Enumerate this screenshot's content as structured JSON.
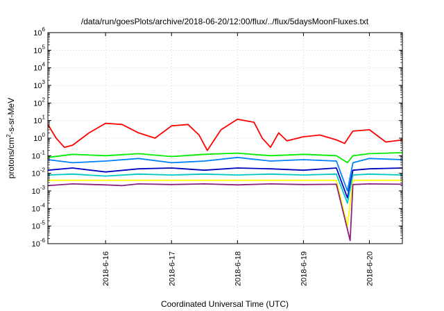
{
  "chart_data": {
    "type": "line",
    "title": "/data/run/goesPlots/archive/2018-06-20/12:00/flux/../flux/5daysMoonFluxes.txt",
    "xlabel": "Coordinated Universal Time (UTC)",
    "ylabel": {
      "base": "protons/cm",
      "sup": "2",
      "rest": "-s-sr-MeV"
    },
    "y_scale": "log",
    "ylim": [
      1e-06,
      1000000.0
    ],
    "y_ticks": [
      {
        "base": "10",
        "exp": "-6"
      },
      {
        "base": "10",
        "exp": "-5"
      },
      {
        "base": "10",
        "exp": "-4"
      },
      {
        "base": "10",
        "exp": "-3"
      },
      {
        "base": "10",
        "exp": "-2"
      },
      {
        "base": "10",
        "exp": "-1"
      },
      {
        "base": "10",
        "exp": "0"
      },
      {
        "base": "10",
        "exp": "1"
      },
      {
        "base": "10",
        "exp": "2"
      },
      {
        "base": "10",
        "exp": "3"
      },
      {
        "base": "10",
        "exp": "4"
      },
      {
        "base": "10",
        "exp": "5"
      },
      {
        "base": "10",
        "exp": "6"
      }
    ],
    "xlim": [
      "2018-06-15 03:00",
      "2018-06-20 12:00"
    ],
    "x_ticks": [
      "2018-6-16",
      "2018-6-17",
      "2018-6-18",
      "2018-6-19",
      "2018-6-20"
    ],
    "x_tick_dates": [
      "2018-06-16",
      "2018-06-17",
      "2018-06-18",
      "2018-06-19",
      "2018-06-20"
    ],
    "grid": true,
    "series": [
      {
        "color": "#ff0000",
        "x": [
          "2018-06-15 03:00",
          "2018-06-15 06:00",
          "2018-06-15 09:00",
          "2018-06-15 12:00",
          "2018-06-15 18:00",
          "2018-06-16 00:00",
          "2018-06-16 06:00",
          "2018-06-16 12:00",
          "2018-06-16 18:00",
          "2018-06-17 00:00",
          "2018-06-17 06:00",
          "2018-06-17 10:00",
          "2018-06-17 13:00",
          "2018-06-17 18:00",
          "2018-06-18 00:00",
          "2018-06-18 06:00",
          "2018-06-18 09:00",
          "2018-06-18 12:00",
          "2018-06-18 15:00",
          "2018-06-18 18:00",
          "2018-06-19 00:00",
          "2018-06-19 06:00",
          "2018-06-19 12:00",
          "2018-06-19 15:00",
          "2018-06-19 17:00",
          "2018-06-19 18:00",
          "2018-06-20 00:00",
          "2018-06-20 06:00",
          "2018-06-20 12:00"
        ],
        "y": [
          6,
          1,
          0.3,
          0.4,
          2,
          7,
          6,
          2,
          1,
          5,
          6,
          1.5,
          0.2,
          3,
          12,
          8,
          1,
          0.3,
          2,
          0.7,
          1.2,
          1.5,
          0.8,
          0.5,
          1.5,
          2.5,
          3,
          0.6,
          0.8
        ]
      },
      {
        "color": "#00ee00",
        "x": [
          "2018-06-15 03:00",
          "2018-06-15 12:00",
          "2018-06-16 00:00",
          "2018-06-16 12:00",
          "2018-06-17 00:00",
          "2018-06-17 12:00",
          "2018-06-18 00:00",
          "2018-06-18 12:00",
          "2018-06-19 00:00",
          "2018-06-19 12:00",
          "2018-06-19 16:00",
          "2018-06-19 18:00",
          "2018-06-20 00:00",
          "2018-06-20 12:00"
        ],
        "y": [
          0.08,
          0.12,
          0.1,
          0.13,
          0.09,
          0.12,
          0.14,
          0.1,
          0.12,
          0.1,
          0.04,
          0.1,
          0.13,
          0.15
        ]
      },
      {
        "color": "#0080ff",
        "x": [
          "2018-06-15 03:00",
          "2018-06-15 12:00",
          "2018-06-16 00:00",
          "2018-06-16 12:00",
          "2018-06-17 00:00",
          "2018-06-17 12:00",
          "2018-06-18 00:00",
          "2018-06-18 12:00",
          "2018-06-19 00:00",
          "2018-06-19 12:00",
          "2018-06-19 16:00",
          "2018-06-19 18:00",
          "2018-06-20 00:00",
          "2018-06-20 12:00"
        ],
        "y": [
          0.06,
          0.04,
          0.05,
          0.07,
          0.04,
          0.05,
          0.08,
          0.05,
          0.06,
          0.05,
          0.001,
          0.04,
          0.07,
          0.06
        ]
      },
      {
        "color": "#0000c0",
        "x": [
          "2018-06-15 03:00",
          "2018-06-15 12:00",
          "2018-06-16 00:00",
          "2018-06-16 12:00",
          "2018-06-17 00:00",
          "2018-06-17 12:00",
          "2018-06-18 00:00",
          "2018-06-18 12:00",
          "2018-06-19 00:00",
          "2018-06-19 12:00",
          "2018-06-19 16:00",
          "2018-06-19 18:00",
          "2018-06-20 00:00",
          "2018-06-20 12:00"
        ],
        "y": [
          0.015,
          0.02,
          0.012,
          0.018,
          0.02,
          0.015,
          0.02,
          0.018,
          0.015,
          0.02,
          0.0004,
          0.015,
          0.018,
          0.02
        ]
      },
      {
        "color": "#00c8c8",
        "x": [
          "2018-06-15 03:00",
          "2018-06-15 12:00",
          "2018-06-16 00:00",
          "2018-06-16 12:00",
          "2018-06-17 00:00",
          "2018-06-17 12:00",
          "2018-06-18 00:00",
          "2018-06-18 12:00",
          "2018-06-19 00:00",
          "2018-06-19 12:00",
          "2018-06-19 16:00",
          "2018-06-19 18:00",
          "2018-06-20 00:00",
          "2018-06-20 12:00"
        ],
        "y": [
          0.008,
          0.009,
          0.007,
          0.009,
          0.008,
          0.009,
          0.008,
          0.009,
          0.008,
          0.009,
          0.0002,
          0.008,
          0.009,
          0.008
        ]
      },
      {
        "color": "#ffff00",
        "x": [
          "2018-06-15 03:00",
          "2018-06-15 12:00",
          "2018-06-16 00:00",
          "2018-06-16 12:00",
          "2018-06-17 00:00",
          "2018-06-17 12:00",
          "2018-06-18 00:00",
          "2018-06-18 12:00",
          "2018-06-19 00:00",
          "2018-06-19 12:00",
          "2018-06-19 16:00",
          "2018-06-19 18:00",
          "2018-06-20 00:00",
          "2018-06-20 12:00"
        ],
        "y": [
          0.004,
          0.004,
          0.004,
          0.004,
          0.004,
          0.004,
          0.004,
          0.004,
          0.004,
          0.004,
          1e-05,
          0.004,
          0.004,
          0.004
        ]
      },
      {
        "color": "#8b2080",
        "x": [
          "2018-06-15 03:00",
          "2018-06-15 12:00",
          "2018-06-16 00:00",
          "2018-06-16 06:00",
          "2018-06-16 12:00",
          "2018-06-17 00:00",
          "2018-06-17 12:00",
          "2018-06-18 00:00",
          "2018-06-18 12:00",
          "2018-06-19 00:00",
          "2018-06-19 12:00",
          "2018-06-19 17:00",
          "2018-06-19 18:00",
          "2018-06-20 00:00",
          "2018-06-20 12:00"
        ],
        "y": [
          0.002,
          0.0025,
          0.0022,
          0.002,
          0.0025,
          0.0023,
          0.0025,
          0.0022,
          0.0025,
          0.0023,
          0.0024,
          1.5e-06,
          0.0023,
          0.0025,
          0.0024
        ]
      }
    ]
  }
}
